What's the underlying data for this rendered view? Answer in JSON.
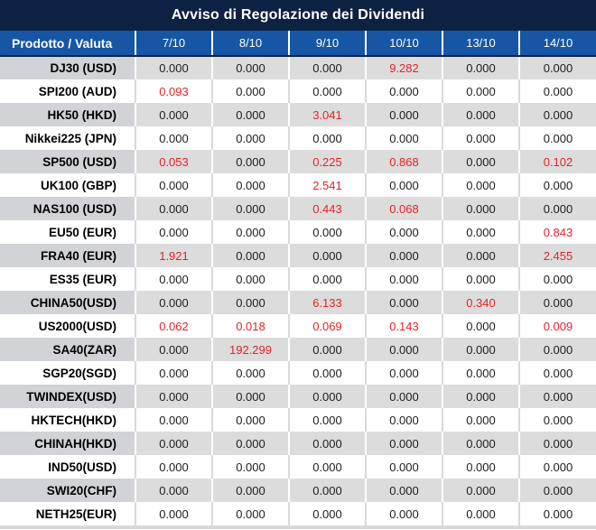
{
  "title": "Avviso di Regolazione dei Dividendi",
  "table": {
    "product_header": "Prodotto / Valuta",
    "date_headers": [
      "7/10",
      "8/10",
      "9/10",
      "10/10",
      "13/10",
      "14/10"
    ],
    "rows": [
      {
        "product": "DJ30 (USD)",
        "values": [
          "0.000",
          "0.000",
          "0.000",
          "9.282",
          "0.000",
          "0.000"
        ]
      },
      {
        "product": "SPI200 (AUD)",
        "values": [
          "0.093",
          "0.000",
          "0.000",
          "0.000",
          "0.000",
          "0.000"
        ]
      },
      {
        "product": "HK50 (HKD)",
        "values": [
          "0.000",
          "0.000",
          "3.041",
          "0.000",
          "0.000",
          "0.000"
        ]
      },
      {
        "product": "Nikkei225 (JPN)",
        "values": [
          "0.000",
          "0.000",
          "0.000",
          "0.000",
          "0.000",
          "0.000"
        ]
      },
      {
        "product": "SP500 (USD)",
        "values": [
          "0.053",
          "0.000",
          "0.225",
          "0.868",
          "0.000",
          "0.102"
        ]
      },
      {
        "product": "UK100 (GBP)",
        "values": [
          "0.000",
          "0.000",
          "2.541",
          "0.000",
          "0.000",
          "0.000"
        ]
      },
      {
        "product": "NAS100 (USD)",
        "values": [
          "0.000",
          "0.000",
          "0.443",
          "0.068",
          "0.000",
          "0.000"
        ]
      },
      {
        "product": "EU50 (EUR)",
        "values": [
          "0.000",
          "0.000",
          "0.000",
          "0.000",
          "0.000",
          "0.843"
        ]
      },
      {
        "product": "FRA40 (EUR)",
        "values": [
          "1.921",
          "0.000",
          "0.000",
          "0.000",
          "0.000",
          "2.455"
        ]
      },
      {
        "product": "ES35 (EUR)",
        "values": [
          "0.000",
          "0.000",
          "0.000",
          "0.000",
          "0.000",
          "0.000"
        ]
      },
      {
        "product": "CHINA50(USD)",
        "values": [
          "0.000",
          "0.000",
          "6.133",
          "0.000",
          "0.340",
          "0.000"
        ]
      },
      {
        "product": "US2000(USD)",
        "values": [
          "0.062",
          "0.018",
          "0.069",
          "0.143",
          "0.000",
          "0.009"
        ]
      },
      {
        "product": "SA40(ZAR)",
        "values": [
          "0.000",
          "192.299",
          "0.000",
          "0.000",
          "0.000",
          "0.000"
        ]
      },
      {
        "product": "SGP20(SGD)",
        "values": [
          "0.000",
          "0.000",
          "0.000",
          "0.000",
          "0.000",
          "0.000"
        ]
      },
      {
        "product": "TWINDEX(USD)",
        "values": [
          "0.000",
          "0.000",
          "0.000",
          "0.000",
          "0.000",
          "0.000"
        ]
      },
      {
        "product": "HKTECH(HKD)",
        "values": [
          "0.000",
          "0.000",
          "0.000",
          "0.000",
          "0.000",
          "0.000"
        ]
      },
      {
        "product": "CHINAH(HKD)",
        "values": [
          "0.000",
          "0.000",
          "0.000",
          "0.000",
          "0.000",
          "0.000"
        ]
      },
      {
        "product": "IND50(USD)",
        "values": [
          "0.000",
          "0.000",
          "0.000",
          "0.000",
          "0.000",
          "0.000"
        ]
      },
      {
        "product": "SWI20(CHF)",
        "values": [
          "0.000",
          "0.000",
          "0.000",
          "0.000",
          "0.000",
          "0.000"
        ]
      },
      {
        "product": "NETH25(EUR)",
        "values": [
          "0.000",
          "0.000",
          "0.000",
          "0.000",
          "0.000",
          "0.000"
        ]
      }
    ]
  },
  "colors": {
    "title_bg": "#0d2142",
    "header_bg": "#1656a4",
    "striped_row_bg": "#dcdcdc",
    "striped_product_bg": "#d2d3d7",
    "gridline_on_white": "#d9d9d9",
    "nonzero_value_red": "#e3232a",
    "value_text": "#1d1d1d"
  }
}
